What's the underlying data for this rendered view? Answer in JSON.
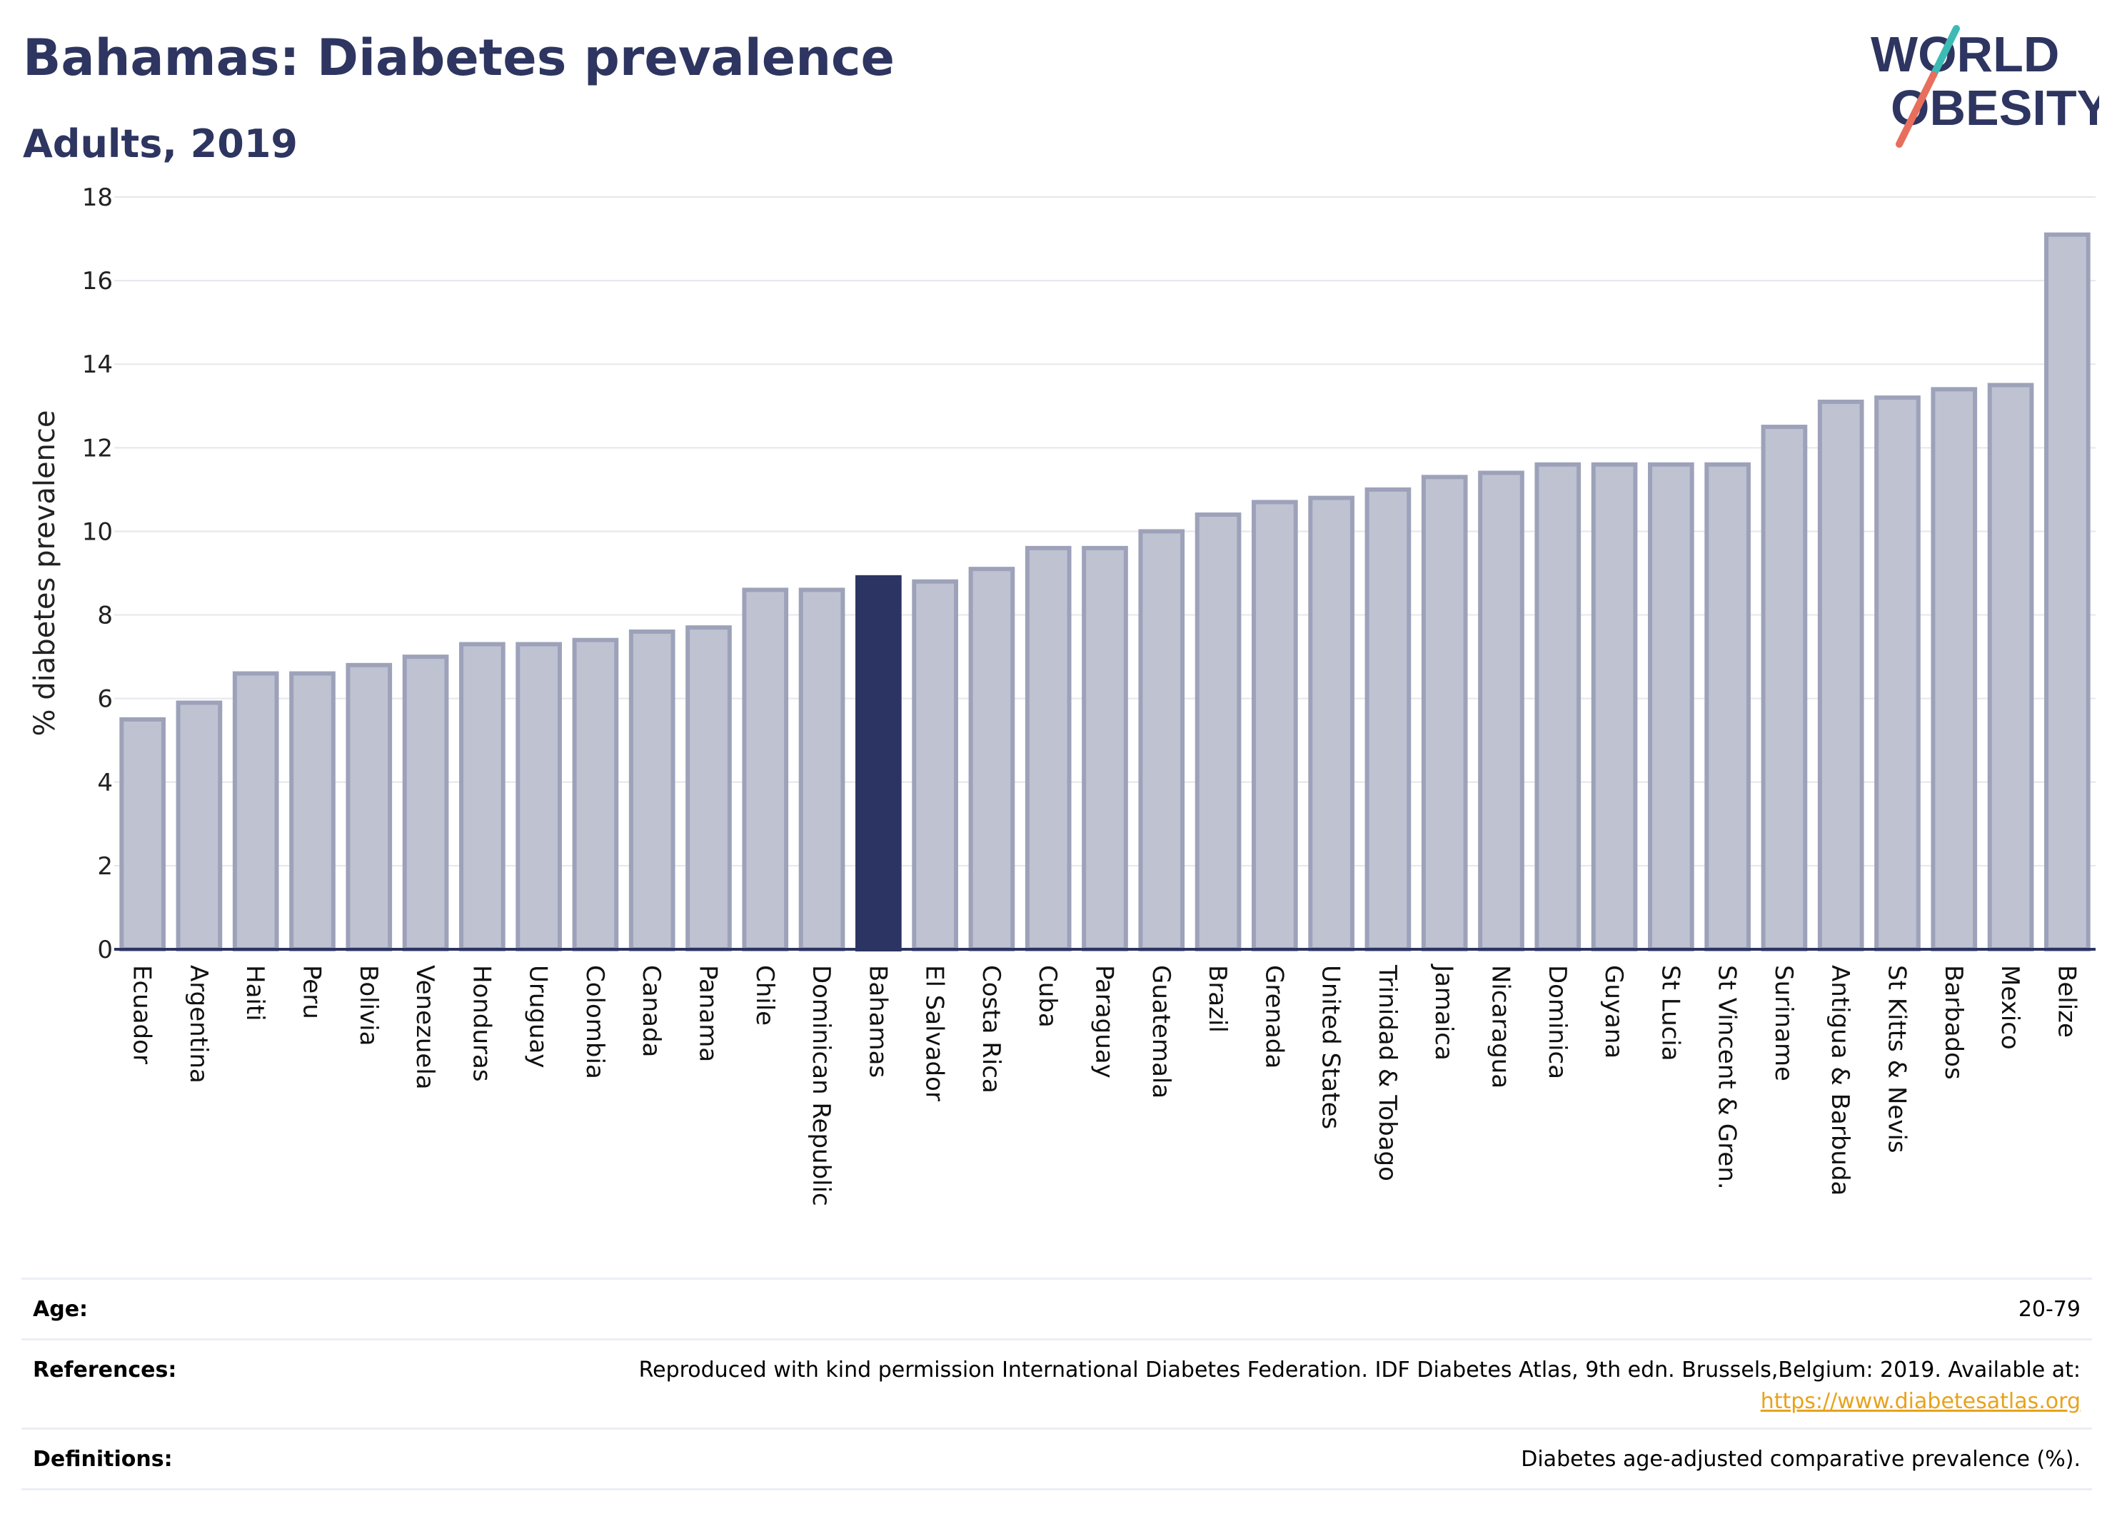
{
  "header": {
    "title": "Bahamas: Diabetes prevalence",
    "subtitle": "Adults, 2019",
    "logo_line1": "WORLD",
    "logo_line2": "OBESITY"
  },
  "colors": {
    "title": "#2d3560",
    "bar": "#bfc2d1",
    "bar_stroke": "#9da2ba",
    "highlight": "#2b3462",
    "grid": "#e6e6ec",
    "logo_teal": "#3dbab4",
    "logo_coral": "#e86f5d",
    "link": "#e8a21b"
  },
  "chart_data": {
    "type": "bar",
    "ylabel": "% diabetes prevalence",
    "xlabel": "",
    "ylim": [
      0,
      18
    ],
    "yticks": [
      0,
      2,
      4,
      6,
      8,
      10,
      12,
      14,
      16,
      18
    ],
    "grid": true,
    "highlight": "Bahamas",
    "categories": [
      "Ecuador",
      "Argentina",
      "Haiti",
      "Peru",
      "Bolivia",
      "Venezuela",
      "Honduras",
      "Uruguay",
      "Colombia",
      "Canada",
      "Panama",
      "Chile",
      "Dominican Republic",
      "Bahamas",
      "El Salvador",
      "Costa Rica",
      "Cuba",
      "Paraguay",
      "Guatemala",
      "Brazil",
      "Grenada",
      "United States",
      "Trinidad & Tobago",
      "Jamaica",
      "Nicaragua",
      "Dominica",
      "Guyana",
      "St Lucia",
      "St Vincent & Gren.",
      "Suriname",
      "Antigua & Barbuda",
      "St Kitts & Nevis",
      "Barbados",
      "Mexico",
      "Belize"
    ],
    "values": [
      5.5,
      5.9,
      6.6,
      6.6,
      6.8,
      7.0,
      7.3,
      7.3,
      7.4,
      7.6,
      7.7,
      8.6,
      8.6,
      8.9,
      8.8,
      9.1,
      9.6,
      9.6,
      10.0,
      10.4,
      10.7,
      10.8,
      11.0,
      11.3,
      11.4,
      11.6,
      11.6,
      11.6,
      11.6,
      12.5,
      13.1,
      13.2,
      13.4,
      13.5,
      17.1
    ]
  },
  "info": {
    "age_label": "Age:",
    "age_value": "20-79",
    "references_label": "References:",
    "references_value": "Reproduced with kind permission International Diabetes Federation. IDF Diabetes Atlas, 9th edn. Brussels,Belgium: 2019. Available at:",
    "references_link": "https://www.diabetesatlas.org",
    "definitions_label": "Definitions:",
    "definitions_value": "Diabetes age-adjusted comparative prevalence (%)."
  }
}
